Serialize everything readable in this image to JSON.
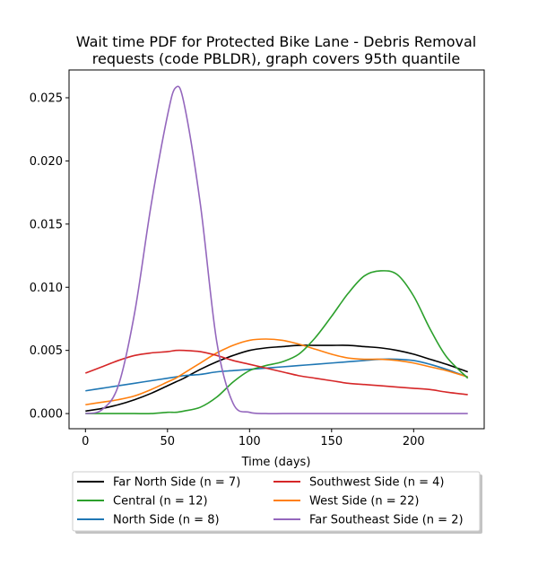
{
  "chart_data": {
    "type": "line",
    "title_lines": [
      "Wait time PDF for Protected Bike Lane - Debris Removal",
      "requests (code PBLDR), graph covers 95th quantile"
    ],
    "xlabel": "Time (days)",
    "ylabel": "",
    "xlim": [
      -10,
      243
    ],
    "ylim": [
      -0.0012,
      0.0272
    ],
    "xticks": [
      0,
      50,
      100,
      150,
      200
    ],
    "yticks": [
      0.0,
      0.005,
      0.01,
      0.015,
      0.02,
      0.025
    ],
    "ytick_labels": [
      "0.000",
      "0.005",
      "0.010",
      "0.015",
      "0.020",
      "0.025"
    ],
    "grid": false,
    "legend_placement": "below plot",
    "x": [
      0,
      10,
      20,
      30,
      40,
      50,
      55,
      60,
      70,
      80,
      90,
      100,
      110,
      120,
      130,
      140,
      150,
      160,
      170,
      180,
      190,
      200,
      210,
      220,
      233
    ],
    "series": [
      {
        "name": "Far North Side (n = 7)",
        "color": "#000000",
        "values": [
          0.0002,
          0.0004,
          0.0007,
          0.0011,
          0.0016,
          0.0022,
          0.0025,
          0.0028,
          0.0035,
          0.0041,
          0.0046,
          0.005,
          0.0052,
          0.0053,
          0.0054,
          0.0054,
          0.0054,
          0.0054,
          0.0053,
          0.0052,
          0.005,
          0.0047,
          0.0043,
          0.0039,
          0.0033
        ]
      },
      {
        "name": "North Side (n = 8)",
        "color": "#1f77b4",
        "values": [
          0.0018,
          0.002,
          0.0022,
          0.0024,
          0.0026,
          0.0028,
          0.0029,
          0.003,
          0.0031,
          0.0033,
          0.0034,
          0.0035,
          0.0036,
          0.0037,
          0.0038,
          0.0039,
          0.004,
          0.0041,
          0.0042,
          0.0043,
          0.0043,
          0.0042,
          0.0039,
          0.0035,
          0.0029
        ]
      },
      {
        "name": "West Side (n = 22)",
        "color": "#ff7f0e",
        "values": [
          0.0007,
          0.0009,
          0.0011,
          0.0014,
          0.0019,
          0.0025,
          0.0028,
          0.0032,
          0.004,
          0.0048,
          0.0054,
          0.0058,
          0.0059,
          0.0058,
          0.0055,
          0.0051,
          0.0047,
          0.0044,
          0.0043,
          0.0043,
          0.0042,
          0.004,
          0.0037,
          0.0034,
          0.0029
        ]
      },
      {
        "name": "Central (n = 12)",
        "color": "#2ca02c",
        "values": [
          0.0,
          0.0,
          0.0,
          0.0,
          0.0,
          0.0001,
          0.0001,
          0.0002,
          0.0005,
          0.0013,
          0.0025,
          0.0034,
          0.0038,
          0.0041,
          0.0047,
          0.006,
          0.0077,
          0.0095,
          0.0109,
          0.0113,
          0.011,
          0.0093,
          0.0067,
          0.0045,
          0.0028
        ]
      },
      {
        "name": "Southwest Side (n = 4)",
        "color": "#d62728",
        "values": [
          0.0032,
          0.0037,
          0.0042,
          0.0046,
          0.0048,
          0.0049,
          0.005,
          0.005,
          0.0049,
          0.0046,
          0.0042,
          0.0039,
          0.0036,
          0.0033,
          0.003,
          0.0028,
          0.0026,
          0.0024,
          0.0023,
          0.0022,
          0.0021,
          0.002,
          0.0019,
          0.0017,
          0.0015
        ]
      },
      {
        "name": "Far Southeast Side (n = 2)",
        "color": "#9467bd",
        "values": [
          0.0,
          0.0003,
          0.0022,
          0.008,
          0.0165,
          0.0236,
          0.0258,
          0.0246,
          0.0166,
          0.0057,
          0.0008,
          0.0001,
          0.0,
          0.0,
          0.0,
          0.0,
          0.0,
          0.0,
          0.0,
          0.0,
          0.0,
          0.0,
          0.0,
          0.0,
          0.0
        ]
      }
    ],
    "legend_order": [
      0,
      3,
      1,
      4,
      2,
      5
    ]
  }
}
